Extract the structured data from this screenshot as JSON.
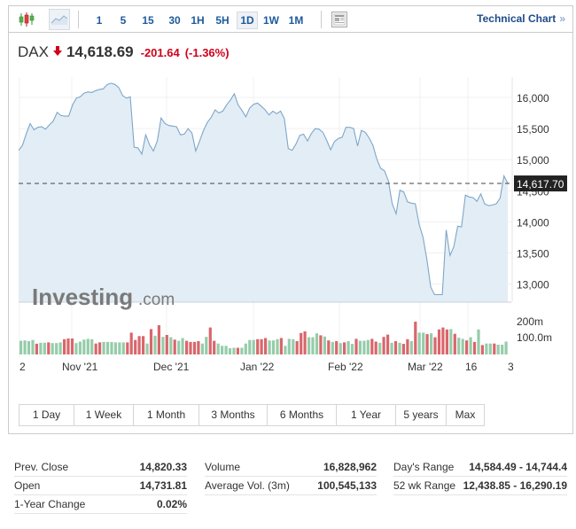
{
  "toolbar": {
    "candlestick_icon": "candlestick-chart-icon",
    "area_icon": "area-chart-icon",
    "intervals": [
      "1",
      "5",
      "15",
      "30",
      "1H",
      "5H",
      "1D",
      "1W",
      "1M"
    ],
    "active_interval": "1D",
    "settings_icon": "chart-layout-icon",
    "technical_chart_label": "Technical Chart",
    "technical_chart_arrow": "»"
  },
  "quote": {
    "symbol": "DAX",
    "direction_icon": "down-arrow-icon",
    "last": "14,618.69",
    "change": "-201.64",
    "change_pct": "(-1.36%)"
  },
  "colors": {
    "up": "#95ccaa",
    "down": "#d9666b",
    "line": "#7ea6c9",
    "area": "#e3edf5",
    "link": "#1e5a9c",
    "negative": "#d0021b"
  },
  "chart_data": {
    "type": "area",
    "title": "DAX",
    "ylabel": "",
    "xlabel": "",
    "ylim": [
      12700,
      16400
    ],
    "y_ticks": [
      "16,000",
      "15,500",
      "15,000",
      "14,500",
      "14,000",
      "13,500",
      "13,000"
    ],
    "x_tick_labels": [
      "2",
      "Nov '21",
      "Dec '21",
      "Jan '22",
      "Feb '22",
      "Mar '22",
      "16",
      "3"
    ],
    "current_price_label": "14,617.70",
    "current_price": 14617.7,
    "grid": true,
    "watermark": "Investing.com",
    "series": [
      {
        "name": "DAX close",
        "values": [
          15150,
          15230,
          15420,
          15580,
          15480,
          15520,
          15530,
          15490,
          15560,
          15620,
          15760,
          15710,
          15700,
          15700,
          15880,
          15990,
          16010,
          16070,
          16090,
          16080,
          16110,
          16130,
          16140,
          16210,
          16230,
          16210,
          16160,
          16030,
          15990,
          16010,
          15200,
          15190,
          15090,
          15400,
          15240,
          15140,
          15300,
          15670,
          15580,
          15550,
          15540,
          15530,
          15400,
          15410,
          15500,
          15430,
          15140,
          15300,
          15470,
          15600,
          15680,
          15800,
          15750,
          15780,
          15880,
          15960,
          16060,
          15880,
          15790,
          15690,
          15830,
          15890,
          15910,
          15860,
          15800,
          15720,
          15780,
          15740,
          15780,
          15660,
          15180,
          15150,
          15250,
          15390,
          15410,
          15300,
          15420,
          15500,
          15490,
          15440,
          15310,
          15160,
          15290,
          15340,
          15360,
          15520,
          15520,
          15500,
          15220,
          15470,
          15440,
          15350,
          15230,
          15010,
          14860,
          14820,
          14660,
          14290,
          14130,
          14510,
          14480,
          14320,
          14300,
          14290,
          13960,
          13750,
          13400,
          12950,
          12830,
          12830,
          12830,
          13870,
          13460,
          13600,
          13930,
          13920,
          14430,
          14400,
          14390,
          14330,
          14450,
          14290,
          14260,
          14270,
          14290,
          14380,
          14740,
          14620
        ]
      },
      {
        "name": "Volume",
        "unit": "m",
        "y_ticks": [
          "200m",
          "100.0m"
        ],
        "values": [
          {
            "v": 70,
            "c": "up"
          },
          {
            "v": 72,
            "c": "up"
          },
          {
            "v": 68,
            "c": "up"
          },
          {
            "v": 74,
            "c": "up"
          },
          {
            "v": 55,
            "c": "down"
          },
          {
            "v": 60,
            "c": "up"
          },
          {
            "v": 60,
            "c": "up"
          },
          {
            "v": 62,
            "c": "down"
          },
          {
            "v": 58,
            "c": "up"
          },
          {
            "v": 58,
            "c": "up"
          },
          {
            "v": 62,
            "c": "up"
          },
          {
            "v": 78,
            "c": "down"
          },
          {
            "v": 82,
            "c": "down"
          },
          {
            "v": 82,
            "c": "down"
          },
          {
            "v": 58,
            "c": "up"
          },
          {
            "v": 66,
            "c": "up"
          },
          {
            "v": 76,
            "c": "up"
          },
          {
            "v": 80,
            "c": "up"
          },
          {
            "v": 78,
            "c": "up"
          },
          {
            "v": 56,
            "c": "down"
          },
          {
            "v": 62,
            "c": "down"
          },
          {
            "v": 64,
            "c": "up"
          },
          {
            "v": 64,
            "c": "up"
          },
          {
            "v": 64,
            "c": "up"
          },
          {
            "v": 62,
            "c": "up"
          },
          {
            "v": 62,
            "c": "up"
          },
          {
            "v": 62,
            "c": "up"
          },
          {
            "v": 62,
            "c": "down"
          },
          {
            "v": 112,
            "c": "down"
          },
          {
            "v": 74,
            "c": "down"
          },
          {
            "v": 94,
            "c": "down"
          },
          {
            "v": 94,
            "c": "down"
          },
          {
            "v": 56,
            "c": "up"
          },
          {
            "v": 130,
            "c": "down"
          },
          {
            "v": 96,
            "c": "up"
          },
          {
            "v": 150,
            "c": "down"
          },
          {
            "v": 90,
            "c": "up"
          },
          {
            "v": 100,
            "c": "down"
          },
          {
            "v": 88,
            "c": "up"
          },
          {
            "v": 76,
            "c": "down"
          },
          {
            "v": 70,
            "c": "up"
          },
          {
            "v": 84,
            "c": "up"
          },
          {
            "v": 70,
            "c": "down"
          },
          {
            "v": 64,
            "c": "down"
          },
          {
            "v": 64,
            "c": "down"
          },
          {
            "v": 68,
            "c": "down"
          },
          {
            "v": 56,
            "c": "up"
          },
          {
            "v": 90,
            "c": "up"
          },
          {
            "v": 138,
            "c": "down"
          },
          {
            "v": 70,
            "c": "down"
          },
          {
            "v": 56,
            "c": "up"
          },
          {
            "v": 44,
            "c": "up"
          },
          {
            "v": 44,
            "c": "up"
          },
          {
            "v": 32,
            "c": "up"
          },
          {
            "v": 34,
            "c": "up"
          },
          {
            "v": 34,
            "c": "down"
          },
          {
            "v": 34,
            "c": "up"
          },
          {
            "v": 56,
            "c": "up"
          },
          {
            "v": 74,
            "c": "up"
          },
          {
            "v": 74,
            "c": "up"
          },
          {
            "v": 78,
            "c": "down"
          },
          {
            "v": 78,
            "c": "down"
          },
          {
            "v": 84,
            "c": "down"
          },
          {
            "v": 72,
            "c": "up"
          },
          {
            "v": 72,
            "c": "up"
          },
          {
            "v": 78,
            "c": "up"
          },
          {
            "v": 84,
            "c": "down"
          },
          {
            "v": 44,
            "c": "up"
          },
          {
            "v": 80,
            "c": "up"
          },
          {
            "v": 78,
            "c": "up"
          },
          {
            "v": 68,
            "c": "down"
          },
          {
            "v": 110,
            "c": "down"
          },
          {
            "v": 118,
            "c": "down"
          },
          {
            "v": 88,
            "c": "up"
          },
          {
            "v": 88,
            "c": "up"
          },
          {
            "v": 108,
            "c": "up"
          },
          {
            "v": 98,
            "c": "down"
          },
          {
            "v": 92,
            "c": "up"
          },
          {
            "v": 72,
            "c": "down"
          },
          {
            "v": 64,
            "c": "up"
          },
          {
            "v": 68,
            "c": "down"
          },
          {
            "v": 58,
            "c": "up"
          },
          {
            "v": 62,
            "c": "down"
          },
          {
            "v": 68,
            "c": "up"
          },
          {
            "v": 54,
            "c": "up"
          },
          {
            "v": 80,
            "c": "down"
          },
          {
            "v": 70,
            "c": "up"
          },
          {
            "v": 70,
            "c": "up"
          },
          {
            "v": 74,
            "c": "up"
          },
          {
            "v": 80,
            "c": "down"
          },
          {
            "v": 66,
            "c": "down"
          },
          {
            "v": 60,
            "c": "up"
          },
          {
            "v": 90,
            "c": "down"
          },
          {
            "v": 102,
            "c": "down"
          },
          {
            "v": 60,
            "c": "up"
          },
          {
            "v": 68,
            "c": "down"
          },
          {
            "v": 60,
            "c": "up"
          },
          {
            "v": 54,
            "c": "down"
          },
          {
            "v": 78,
            "c": "down"
          },
          {
            "v": 68,
            "c": "up"
          },
          {
            "v": 168,
            "c": "down"
          },
          {
            "v": 112,
            "c": "up"
          },
          {
            "v": 112,
            "c": "up"
          },
          {
            "v": 104,
            "c": "down"
          },
          {
            "v": 108,
            "c": "up"
          },
          {
            "v": 88,
            "c": "down"
          },
          {
            "v": 128,
            "c": "down"
          },
          {
            "v": 138,
            "c": "down"
          },
          {
            "v": 128,
            "c": "down"
          },
          {
            "v": 130,
            "c": "up"
          },
          {
            "v": 106,
            "c": "down"
          },
          {
            "v": 86,
            "c": "up"
          },
          {
            "v": 80,
            "c": "up"
          },
          {
            "v": 72,
            "c": "down"
          },
          {
            "v": 88,
            "c": "up"
          },
          {
            "v": 64,
            "c": "down"
          },
          {
            "v": 128,
            "c": "up"
          },
          {
            "v": 48,
            "c": "down"
          },
          {
            "v": 56,
            "c": "up"
          },
          {
            "v": 56,
            "c": "up"
          },
          {
            "v": 56,
            "c": "down"
          },
          {
            "v": 50,
            "c": "up"
          },
          {
            "v": 50,
            "c": "up"
          },
          {
            "v": 66,
            "c": "up"
          }
        ]
      }
    ]
  },
  "range_buttons": [
    "1 Day",
    "1 Week",
    "1 Month",
    "3 Months",
    "6 Months",
    "1 Year",
    "5 years",
    "Max"
  ],
  "stats": {
    "col1": [
      {
        "label": "Prev. Close",
        "value": "14,820.33"
      },
      {
        "label": "Open",
        "value": "14,731.81"
      },
      {
        "label": "1-Year Change",
        "value": "0.02%"
      }
    ],
    "col2": [
      {
        "label": "Volume",
        "value": "16,828,962"
      },
      {
        "label": "Average Vol. (3m)",
        "value": "100,545,133"
      }
    ],
    "col3": [
      {
        "label": "Day's Range",
        "value": "14,584.49 - 14,744.4"
      },
      {
        "label": "52 wk Range",
        "value": "12,438.85 - 16,290.19"
      }
    ]
  }
}
